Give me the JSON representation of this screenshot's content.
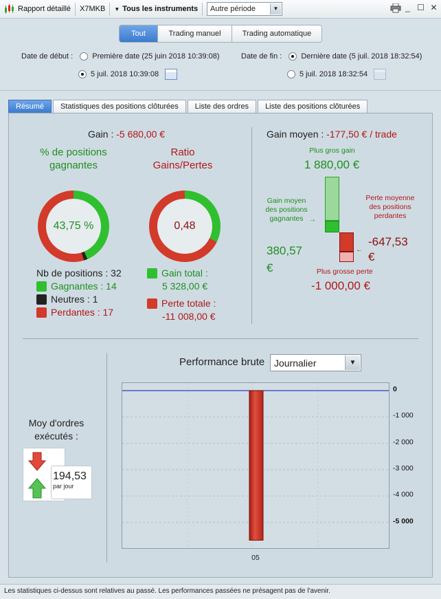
{
  "toolbar": {
    "report_label": "Rapport détaillé",
    "account": "X7MKB",
    "instruments": "Tous les instruments",
    "period_value": "Autre période"
  },
  "filter": {
    "segments": [
      "Tout",
      "Trading manuel",
      "Trading automatique"
    ],
    "start_label": "Date de début :",
    "start_first_option": "Première date (25 juin 2018 10:39:08)",
    "start_custom_value": "5 juil. 2018 10:39:08",
    "end_label": "Date de fin :",
    "end_last_option": "Dernière date (5 juil. 2018 18:32:54)",
    "end_custom_value": "5 juil. 2018 18:32:54"
  },
  "tabs": [
    "Résumé",
    "Statistiques des positions clôturées",
    "Liste des ordres",
    "Liste des positions clôturées"
  ],
  "summary": {
    "gain_label": "Gain :",
    "gain_value": "-5 680,00 €",
    "win_title": "% de positions gagnantes",
    "win_pct": "43,75 %",
    "ratio_title": "Ratio Gains/Pertes",
    "ratio_value": "0,48",
    "nb_positions": "Nb de positions : 32",
    "gagnantes": "Gagnantes : 14",
    "neutres": "Neutres : 1",
    "perdantes": "Perdantes : 17",
    "gain_total_label": "Gain total :",
    "gain_total_value": "5 328,00 €",
    "perte_totale_label": "Perte totale :",
    "perte_totale_value": "-11 008,00 €",
    "colors": {
      "green": "#2fbf2f",
      "red": "#d23a2a",
      "black": "#222222"
    }
  },
  "average": {
    "label": "Gain moyen :",
    "value": "-177,50 € / trade",
    "max_gain_label": "Plus gros gain",
    "max_gain_value": "1 880,00 €",
    "avg_win_label": "Gain moyen des positions gagnantes",
    "avg_win_value": "380,57 €",
    "avg_loss_label": "Perte moyenne des positions perdantes",
    "avg_loss_value": "-647,53 €",
    "max_loss_label": "Plus grosse perte",
    "max_loss_value": "-1 000,00 €"
  },
  "orders": {
    "title": "Moy d'ordres exécutés :",
    "value": "194,53",
    "unit": "par jour"
  },
  "performance": {
    "title": "Performance brute",
    "interval": "Journalier"
  },
  "chart_data": {
    "type": "bar",
    "categories": [
      "05"
    ],
    "values": [
      -5680
    ],
    "ylim": [
      -5600,
      0
    ],
    "yticks": [
      "0",
      "-1 000",
      "-2 000",
      "-3 000",
      "-4 000",
      "-5 000"
    ],
    "grid": true
  },
  "footer": "Les statistiques ci-dessus sont relatives au passé. Les performances passées ne présagent pas de l'avenir."
}
